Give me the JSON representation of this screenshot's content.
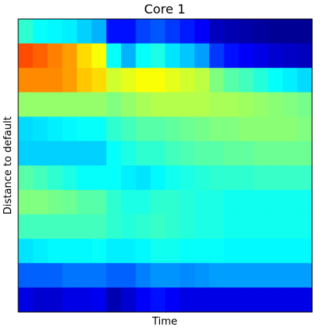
{
  "chart_data": {
    "type": "heatmap",
    "title": "Core 1",
    "xlabel": "Time",
    "ylabel": "Distance to default",
    "colormap": "jet",
    "x_ticks": [],
    "y_ticks": [],
    "grid": false,
    "n_cols": 20,
    "n_rows": 12,
    "orientation": "row 0 = top of plot",
    "values": [
      [
        0.42,
        0.38,
        0.37,
        0.36,
        0.33,
        0.3,
        0.14,
        0.14,
        0.19,
        0.21,
        0.18,
        0.15,
        0.12,
        0.06,
        0.05,
        0.04,
        0.03,
        0.02,
        0.02,
        0.02
      ],
      [
        0.8,
        0.78,
        0.75,
        0.72,
        0.66,
        0.62,
        0.38,
        0.3,
        0.38,
        0.4,
        0.35,
        0.32,
        0.28,
        0.18,
        0.14,
        0.12,
        0.1,
        0.08,
        0.07,
        0.06
      ],
      [
        0.74,
        0.74,
        0.74,
        0.72,
        0.68,
        0.66,
        0.58,
        0.6,
        0.62,
        0.62,
        0.6,
        0.58,
        0.56,
        0.5,
        0.46,
        0.44,
        0.41,
        0.38,
        0.36,
        0.34
      ],
      [
        0.52,
        0.52,
        0.52,
        0.52,
        0.52,
        0.52,
        0.5,
        0.52,
        0.54,
        0.55,
        0.55,
        0.55,
        0.55,
        0.54,
        0.54,
        0.53,
        0.52,
        0.51,
        0.5,
        0.49
      ],
      [
        0.34,
        0.35,
        0.36,
        0.37,
        0.38,
        0.38,
        0.42,
        0.44,
        0.46,
        0.46,
        0.47,
        0.48,
        0.49,
        0.5,
        0.5,
        0.51,
        0.51,
        0.51,
        0.51,
        0.5
      ],
      [
        0.33,
        0.33,
        0.33,
        0.33,
        0.33,
        0.33,
        0.38,
        0.4,
        0.42,
        0.42,
        0.44,
        0.45,
        0.46,
        0.46,
        0.47,
        0.47,
        0.48,
        0.48,
        0.48,
        0.48
      ],
      [
        0.46,
        0.44,
        0.42,
        0.4,
        0.38,
        0.38,
        0.38,
        0.36,
        0.35,
        0.37,
        0.39,
        0.4,
        0.41,
        0.42,
        0.42,
        0.42,
        0.43,
        0.43,
        0.43,
        0.43
      ],
      [
        0.5,
        0.5,
        0.49,
        0.48,
        0.46,
        0.46,
        0.42,
        0.4,
        0.4,
        0.42,
        0.42,
        0.41,
        0.4,
        0.4,
        0.39,
        0.39,
        0.39,
        0.39,
        0.39,
        0.39
      ],
      [
        0.44,
        0.44,
        0.44,
        0.44,
        0.44,
        0.44,
        0.42,
        0.41,
        0.42,
        0.43,
        0.42,
        0.41,
        0.4,
        0.4,
        0.39,
        0.39,
        0.39,
        0.39,
        0.39,
        0.39
      ],
      [
        0.35,
        0.36,
        0.37,
        0.37,
        0.37,
        0.38,
        0.36,
        0.36,
        0.37,
        0.39,
        0.39,
        0.38,
        0.38,
        0.38,
        0.37,
        0.37,
        0.37,
        0.37,
        0.37,
        0.37
      ],
      [
        0.22,
        0.22,
        0.22,
        0.24,
        0.24,
        0.24,
        0.22,
        0.22,
        0.25,
        0.27,
        0.27,
        0.26,
        0.27,
        0.28,
        0.28,
        0.28,
        0.28,
        0.28,
        0.28,
        0.28
      ],
      [
        0.1,
        0.08,
        0.08,
        0.1,
        0.1,
        0.11,
        0.05,
        0.08,
        0.12,
        0.14,
        0.12,
        0.1,
        0.1,
        0.1,
        0.1,
        0.1,
        0.1,
        0.1,
        0.1,
        0.1
      ]
    ]
  }
}
